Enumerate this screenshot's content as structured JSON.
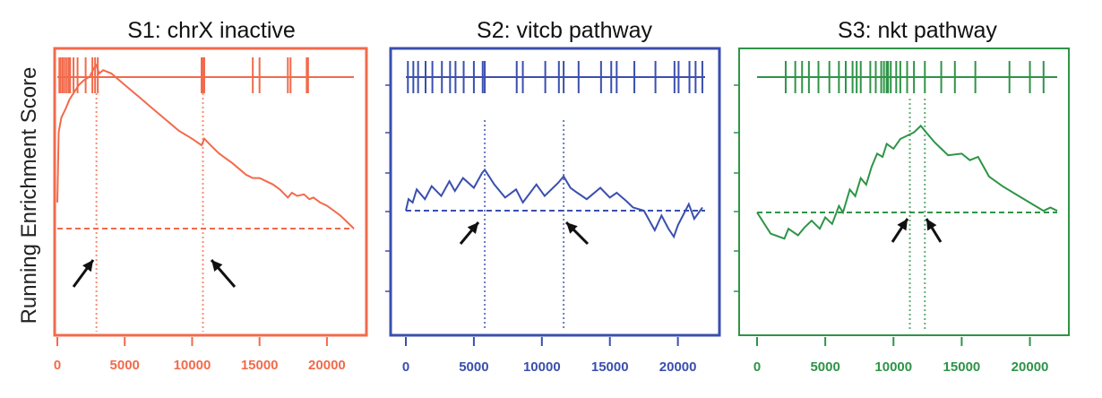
{
  "figure": {
    "ylabel": "Running Enrichment Score"
  },
  "chart_data": [
    {
      "type": "line",
      "title": "S1: chrX inactive",
      "color": "#f26a4b",
      "xlim": [
        0,
        22000
      ],
      "xticks": [
        0,
        5000,
        10000,
        15000,
        20000
      ],
      "xlabel": "",
      "ylabel": "Running Enrichment Score",
      "ylim": [
        -0.3,
        1.05
      ],
      "hits": [
        150,
        250,
        400,
        550,
        700,
        850,
        950,
        1200,
        1500,
        2100,
        2600,
        2800,
        3000,
        10700,
        10800,
        10900,
        14500,
        15000,
        17100,
        17300,
        18500,
        18600
      ],
      "series": [
        {
          "name": "",
          "x": [
            0,
            100,
            300,
            600,
            900,
            1200,
            1600,
            2000,
            2400,
            2700,
            2900,
            3100,
            3400,
            4000,
            5000,
            6000,
            7000,
            8000,
            9000,
            10000,
            10700,
            10900,
            11500,
            12000,
            13000,
            14000,
            14500,
            15000,
            15500,
            16000,
            16500,
            17100,
            17400,
            17800,
            18300,
            18700,
            19000,
            19500,
            20000,
            21000,
            22000
          ],
          "y": [
            0.05,
            0.48,
            0.57,
            0.62,
            0.68,
            0.72,
            0.77,
            0.8,
            0.82,
            0.87,
            0.89,
            0.84,
            0.86,
            0.84,
            0.77,
            0.7,
            0.63,
            0.56,
            0.49,
            0.44,
            0.4,
            0.44,
            0.39,
            0.35,
            0.29,
            0.22,
            0.2,
            0.2,
            0.18,
            0.16,
            0.13,
            0.08,
            0.11,
            0.09,
            0.1,
            0.07,
            0.08,
            0.05,
            0.03,
            -0.03,
            -0.11
          ]
        },
        {
          "name": "",
          "x": [
            0,
            22000
          ],
          "y": [
            -0.11,
            -0.11
          ]
        }
      ],
      "markers": [
        2900,
        10800
      ]
    },
    {
      "type": "line",
      "title": "S2: vitcb pathway",
      "color": "#3a4fae",
      "xlim": [
        0,
        22000
      ],
      "xticks": [
        0,
        5000,
        10000,
        15000,
        20000
      ],
      "xlabel": "",
      "ylabel": "",
      "ylim": [
        -0.55,
        0.85
      ],
      "hits": [
        150,
        550,
        900,
        1450,
        1950,
        2650,
        3250,
        3650,
        4250,
        5000,
        5650,
        5800,
        8150,
        8600,
        10250,
        11250,
        11600,
        12700,
        14350,
        15100,
        15500,
        16800,
        18350,
        19750,
        20050,
        20850,
        21300,
        21800
      ],
      "series": [
        {
          "name": "",
          "x": [
            0,
            200,
            500,
            800,
            1400,
            1900,
            2600,
            3200,
            3600,
            4200,
            5000,
            5600,
            5800,
            6500,
            7300,
            8100,
            8600,
            9600,
            10200,
            11200,
            11600,
            12100,
            12600,
            13300,
            14300,
            15000,
            15500,
            16200,
            16700,
            17500,
            18300,
            18800,
            19300,
            19700,
            20000,
            20800,
            21200,
            21800
          ],
          "y": [
            0.0,
            0.07,
            0.05,
            0.13,
            0.07,
            0.15,
            0.09,
            0.18,
            0.12,
            0.2,
            0.14,
            0.23,
            0.25,
            0.16,
            0.08,
            0.13,
            0.05,
            0.16,
            0.09,
            0.17,
            0.21,
            0.14,
            0.11,
            0.07,
            0.14,
            0.08,
            0.11,
            0.06,
            0.02,
            0.0,
            -0.12,
            -0.03,
            -0.11,
            -0.16,
            -0.09,
            0.04,
            -0.05,
            0.02
          ]
        },
        {
          "name": "",
          "x": [
            0,
            22000
          ],
          "y": [
            0.0,
            0.0
          ]
        }
      ],
      "markers": [
        5800,
        11600
      ]
    },
    {
      "type": "line",
      "title": "S3: nkt pathway",
      "color": "#2e9447",
      "xlim": [
        0,
        22000
      ],
      "xticks": [
        0,
        5000,
        10000,
        15000,
        20000
      ],
      "xlabel": "",
      "ylabel": "",
      "ylim": [
        -0.55,
        0.85
      ],
      "hits": [
        2100,
        2800,
        3300,
        3800,
        4500,
        5300,
        6000,
        6500,
        7000,
        7300,
        7600,
        8300,
        8700,
        9100,
        9300,
        9500,
        9600,
        9800,
        10200,
        10500,
        11000,
        11500,
        12300,
        13500,
        14500,
        16000,
        18500,
        20000,
        21000
      ],
      "series": [
        {
          "name": "",
          "x": [
            0,
            1000,
            2000,
            2300,
            3000,
            3500,
            4000,
            4600,
            5000,
            5500,
            6000,
            6300,
            6800,
            7200,
            7600,
            8000,
            8400,
            8800,
            9200,
            9500,
            10000,
            10500,
            11000,
            11500,
            12000,
            12500,
            13000,
            13500,
            14000,
            15000,
            15600,
            16200,
            17000,
            18000,
            19000,
            20000,
            21000,
            21500,
            22000
          ],
          "y": [
            0.0,
            -0.13,
            -0.16,
            -0.1,
            -0.14,
            -0.09,
            -0.05,
            -0.1,
            -0.03,
            -0.07,
            0.04,
            0.0,
            0.14,
            0.1,
            0.21,
            0.17,
            0.28,
            0.36,
            0.34,
            0.42,
            0.39,
            0.45,
            0.47,
            0.49,
            0.53,
            0.48,
            0.43,
            0.39,
            0.35,
            0.36,
            0.32,
            0.34,
            0.22,
            0.16,
            0.11,
            0.06,
            0.01,
            0.03,
            0.01
          ]
        },
        {
          "name": "",
          "x": [
            0,
            22000
          ],
          "y": [
            0.0,
            0.0
          ]
        }
      ],
      "markers": [
        11200,
        12300
      ]
    }
  ]
}
